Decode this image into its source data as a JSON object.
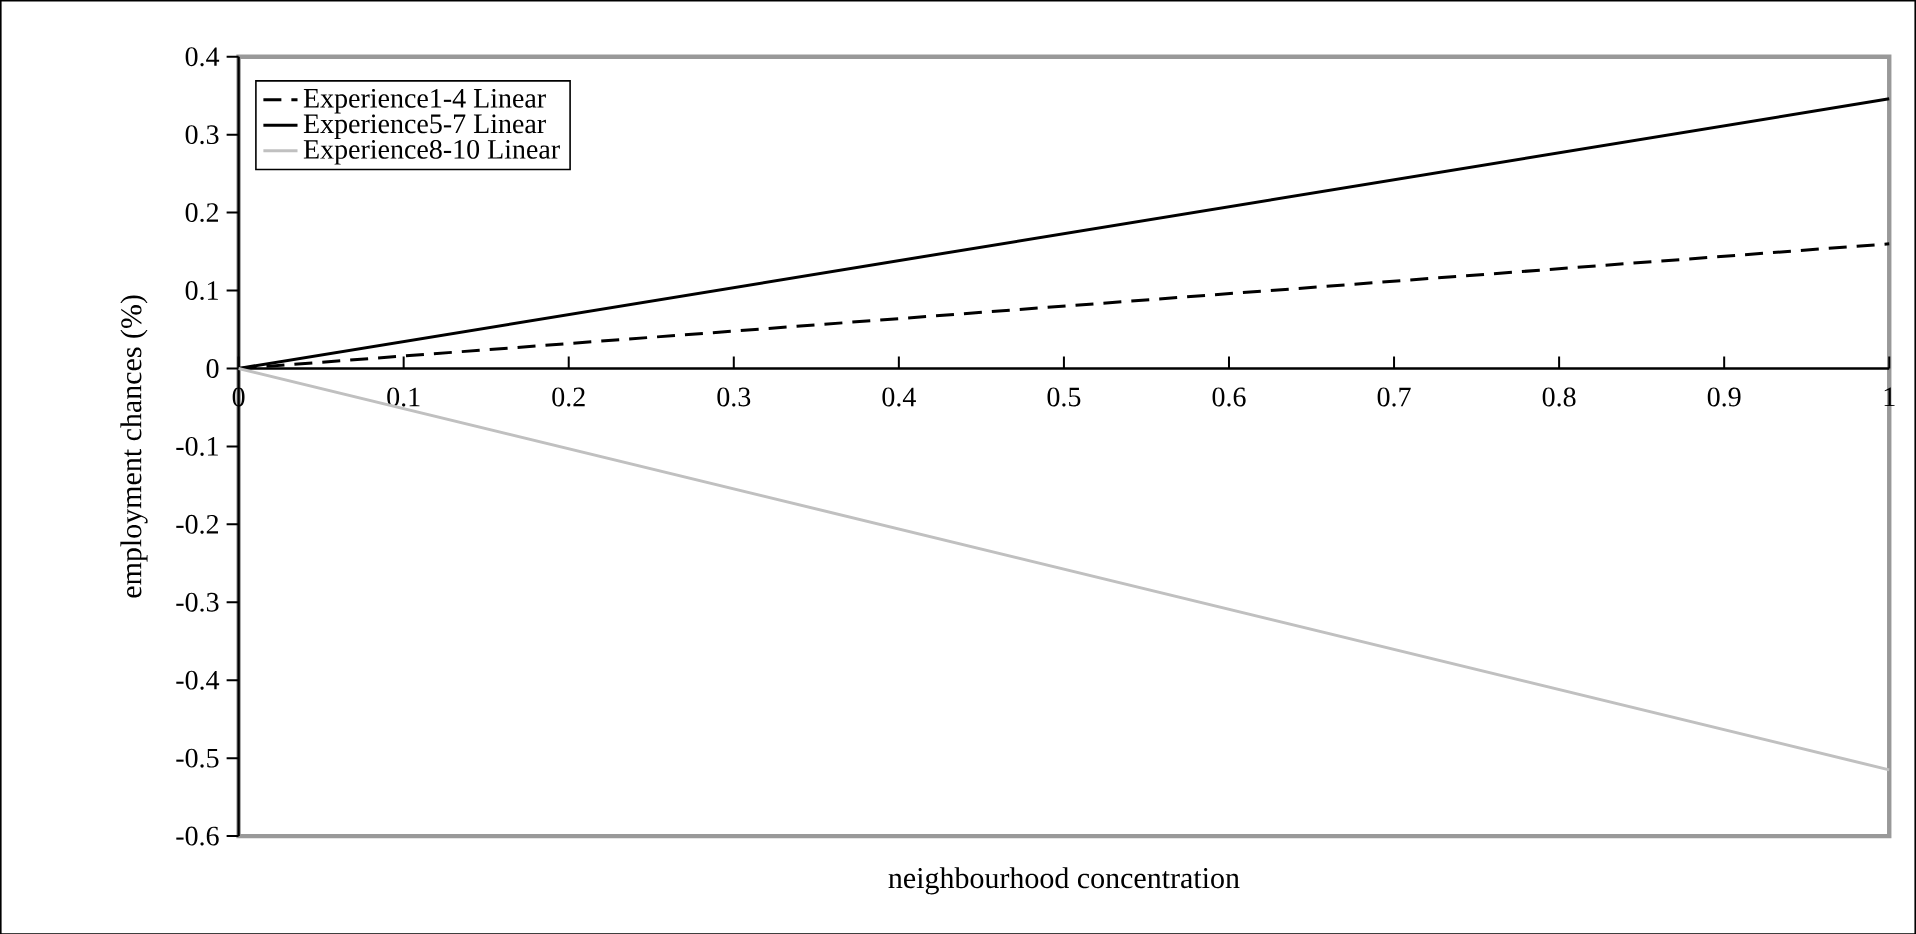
{
  "chart_data": {
    "type": "line",
    "xlabel": "neighbourhood concentration",
    "ylabel": "employment chances (%)",
    "x": [
      0,
      1
    ],
    "series": [
      {
        "name": "Experience1-4 Linear",
        "color": "#000000",
        "line_style": "dashed",
        "values": [
          0,
          0.16
        ]
      },
      {
        "name": "Experience5-7 Linear",
        "color": "#000000",
        "line_style": "solid",
        "values": [
          0,
          0.346
        ]
      },
      {
        "name": "Experience8-10 Linear",
        "color": "#c0c0c0",
        "line_style": "solid",
        "values": [
          0,
          -0.515
        ]
      }
    ],
    "xlim": [
      0,
      1
    ],
    "ylim": [
      -0.6,
      0.4
    ],
    "xticks": [
      0,
      0.1,
      0.2,
      0.3,
      0.4,
      0.5,
      0.6,
      0.7,
      0.8,
      0.9,
      1
    ],
    "yticks": [
      -0.6,
      -0.5,
      -0.4,
      -0.3,
      -0.2,
      -0.1,
      0,
      0.1,
      0.2,
      0.3,
      0.4
    ],
    "legend": "top left",
    "grid": false,
    "marker": "none"
  }
}
